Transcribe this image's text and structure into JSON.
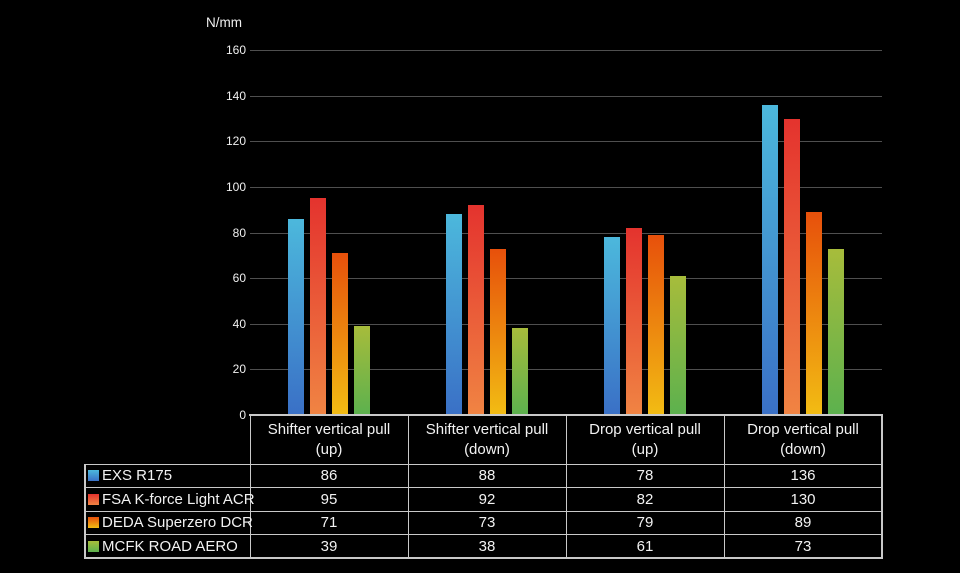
{
  "chart_data": {
    "type": "bar",
    "title": "",
    "ylabel": "N/mm",
    "xlabel": "",
    "grid": true,
    "legend_position": "table-left",
    "categories": [
      "Shifter vertical pull (up)",
      "Shifter vertical pull (down)",
      "Drop vertical pull (up)",
      "Drop vertical pull (down)"
    ],
    "category_label_lines": [
      [
        "Shifter vertical pull",
        "(up)"
      ],
      [
        "Shifter vertical pull",
        "(down)"
      ],
      [
        "Drop vertical pull",
        "(up)"
      ],
      [
        "Drop vertical pull",
        "(down)"
      ]
    ],
    "series": [
      {
        "name": "EXS R175",
        "values": [
          86,
          88,
          78,
          136
        ],
        "color_top": "#4cb8dc",
        "color_bottom": "#3a70c6"
      },
      {
        "name": "FSA K-force Light ACR",
        "values": [
          95,
          92,
          82,
          130
        ],
        "color_top": "#e4332e",
        "color_bottom": "#f08443"
      },
      {
        "name": "DEDA Superzero DCR",
        "values": [
          71,
          73,
          79,
          89
        ],
        "color_top": "#e7500b",
        "color_bottom": "#f2bc13"
      },
      {
        "name": "MCFK ROAD AERO",
        "values": [
          39,
          38,
          61,
          73
        ],
        "color_top": "#a7bc3b",
        "color_bottom": "#5cb14e"
      }
    ],
    "y_axis": {
      "min": 0,
      "max": 160,
      "step": 20,
      "tick_labels": [
        "0",
        "20",
        "40",
        "60",
        "80",
        "100",
        "120",
        "140",
        "160"
      ]
    },
    "colors": {
      "background": "#000000",
      "gridline": "#4f4f4f",
      "text": "#f0f0f0",
      "table_border": "#c9c9c9"
    }
  }
}
